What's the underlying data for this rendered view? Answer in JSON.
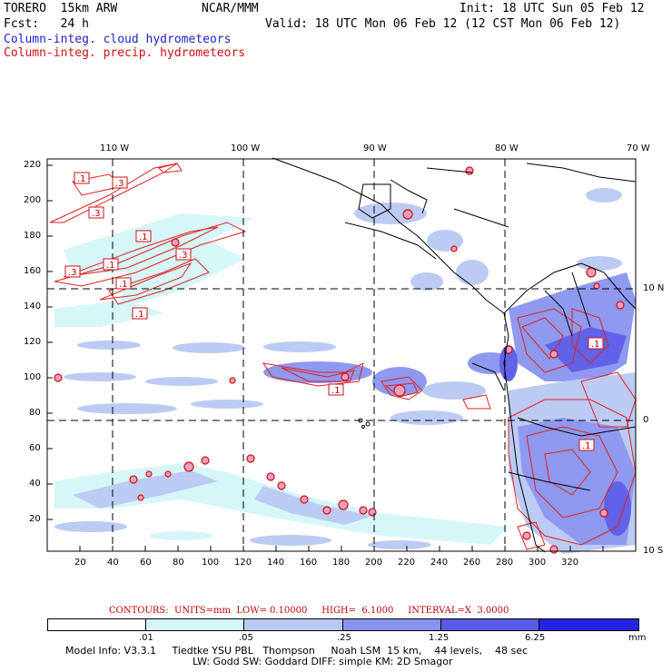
{
  "header": {
    "model": "TORERO  15km ARW",
    "org": "NCAR/MMM",
    "init": "Init: 18 UTC Sun 05 Feb 12",
    "fcst": "Fcst:   24 h",
    "valid": "Valid: 18 UTC Mon 06 Feb 12 (12 CST Mon 06 Feb 12)",
    "cloud_label": "Column-integ. cloud hydrometeors",
    "precip_label": "Column-integ. precip. hydrometeors"
  },
  "axes": {
    "top_lon": [
      "110 W",
      "100 W",
      "90 W",
      "80 W",
      "70 W"
    ],
    "right_lat": [
      "10 N",
      "0",
      "10 S"
    ],
    "left_y": [
      "220",
      "200",
      "180",
      "160",
      "140",
      "120",
      "100",
      "80",
      "60",
      "40",
      "20"
    ],
    "bottom_x": [
      "20",
      "40",
      "60",
      "80",
      "100",
      "120",
      "140",
      "160",
      "180",
      "200",
      "220",
      "240",
      "260",
      "280",
      "300",
      "320"
    ]
  },
  "contour_labels": [
    ".1",
    ".3",
    ".3",
    ".1",
    ".1",
    ".3",
    ".1",
    ".3",
    ".1",
    ".1",
    ".1",
    ".1"
  ],
  "contours_info": "CONTOURS:  UNITS=mm  LOW= 0.10000     HIGH=  6.1000     INTERVAL=X  3.0000",
  "legend": {
    "labels": [
      ".01",
      ".05",
      ".25",
      "1.25",
      "6.25",
      "mm"
    ],
    "colors": [
      "#ffffff",
      "#d4f6f8",
      "#b9c9f3",
      "#8a94f0",
      "#5a5ae8",
      "#2424e0"
    ]
  },
  "model_info": {
    "line1": "Model Info: V3.3.1     Tiedtke YSU PBL   Thompson     Noah LSM  15 km,    44 levels,    48 sec",
    "line2": "LW: Godd SW: Goddard DIFF: simple KM: 2D Smagor"
  }
}
